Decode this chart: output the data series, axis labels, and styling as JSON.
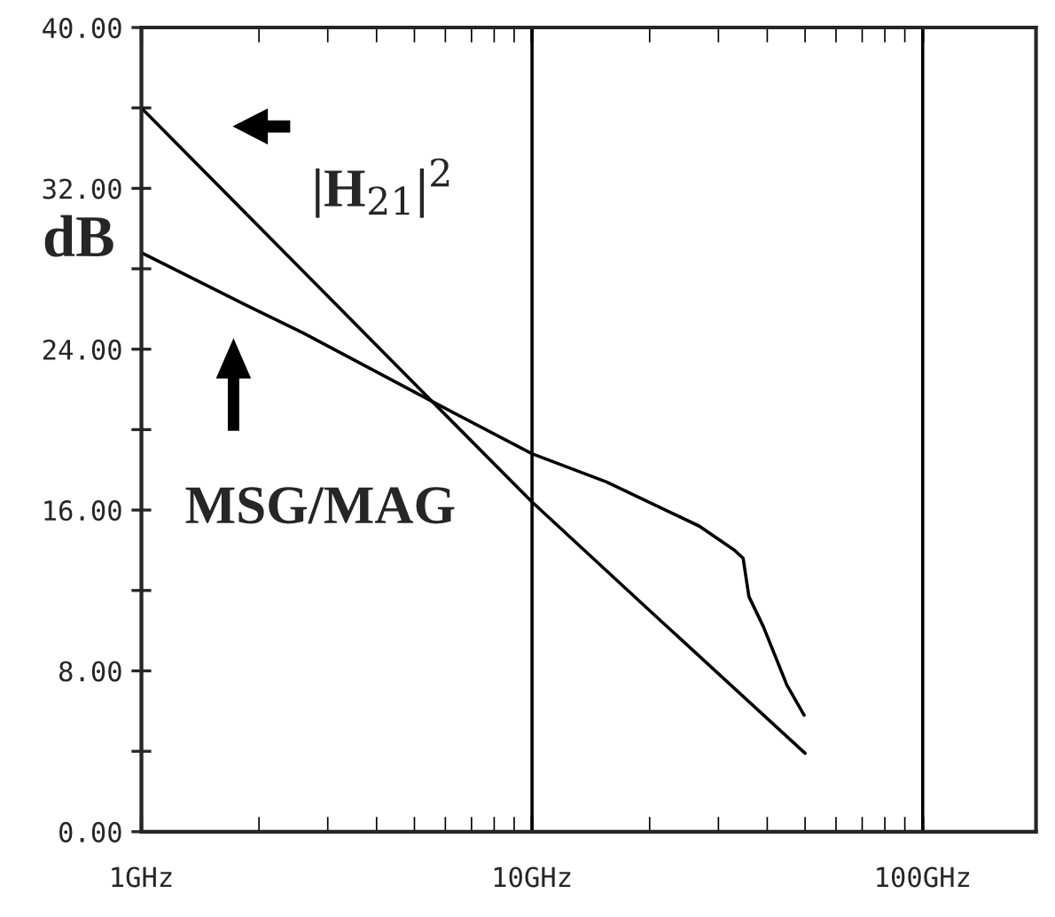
{
  "chart_data": {
    "type": "line",
    "ylabel": "dB",
    "annotations": [
      "|H$_{21}$|$^{2}$",
      "MSG/MAG"
    ],
    "series": [
      {
        "color": "#000000",
        "x": [
          1,
          5.55,
          10,
          20,
          50
        ],
        "values": [
          36.0,
          21.4,
          16.4,
          11.0,
          3.9
        ]
      },
      {
        "color": "#000000",
        "x": [
          1,
          1.85,
          2.6,
          5.55,
          10,
          15.5,
          26.8,
          33,
          34.7,
          35.9,
          39.1,
          44.9,
          49.7
        ],
        "values": [
          28.8,
          26.2,
          24.8,
          21.4,
          18.8,
          17.4,
          15.2,
          14.0,
          13.6,
          11.7,
          10.2,
          7.3,
          5.8
        ]
      }
    ],
    "log": "x",
    "xlim": [
      1,
      195
    ],
    "xticks": [
      {
        "value": 1,
        "label": "1GHz"
      },
      {
        "value": 10,
        "label": "10GHz"
      },
      {
        "value": 100,
        "label": "100GHz"
      }
    ],
    "ylim": [
      0,
      40
    ],
    "yticks": [
      {
        "value": 0,
        "label": "0.00"
      },
      {
        "value": 4,
        "label": null
      },
      {
        "value": 8,
        "label": "8.00"
      },
      {
        "value": 12,
        "label": null
      },
      {
        "value": 16,
        "label": "16.00"
      },
      {
        "value": 20,
        "label": null
      },
      {
        "value": 24,
        "label": "24.00"
      },
      {
        "value": 28,
        "label": null
      },
      {
        "value": 32,
        "label": "32.00"
      },
      {
        "value": 36,
        "label": null
      },
      {
        "value": 40,
        "label": "40.00"
      }
    ],
    "grid": "x",
    "legend": false,
    "marker": "none",
    "line_style": "solid"
  }
}
